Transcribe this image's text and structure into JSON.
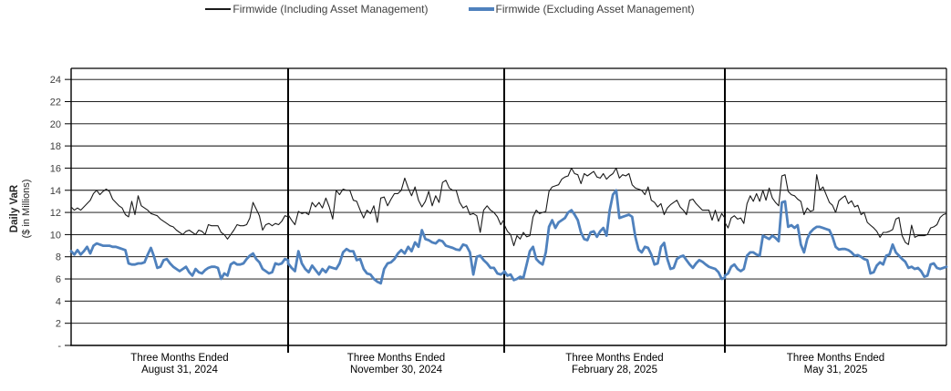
{
  "legend": {
    "items": [
      {
        "label": "Firmwide (Including Asset Management)"
      },
      {
        "label": "Firmwide (Excluding Asset Management)"
      }
    ]
  },
  "y_axis": {
    "title": "Daily VaR",
    "subtitle": "($ in Millions)",
    "tick_values": [
      0,
      2,
      4,
      6,
      8,
      10,
      12,
      14,
      16,
      18,
      20,
      22,
      24
    ],
    "tick_labels": [
      "-",
      "2",
      "4",
      "6",
      "8",
      "10",
      "12",
      "14",
      "16",
      "18",
      "20",
      "22",
      "24"
    ]
  },
  "chart_data": {
    "type": "line",
    "title": "",
    "xlabel": "",
    "ylabel_title": "Daily VaR",
    "ylabel_subtitle": "($ in Millions)",
    "ylim": [
      0,
      25
    ],
    "grid": true,
    "legend_position": "top",
    "series": [
      {
        "key": "including",
        "name": "Firmwide (Including Asset Management)",
        "color": "#1a1a1a",
        "stroke_width": 1.1,
        "legend_swatch_height": 1.5
      },
      {
        "key": "excluding",
        "name": "Firmwide (Excluding Asset Management)",
        "color": "#4f81bd",
        "stroke_width": 2.8,
        "legend_swatch_height": 3.5
      }
    ],
    "sections": [
      {
        "label": [
          "Three Months Ended",
          "August 31, 2024"
        ],
        "including": [
          12.5,
          12.2,
          12.4,
          12.2,
          12.5,
          12.8,
          13.1,
          13.7,
          14.0,
          13.6,
          13.9,
          14.1,
          13.9,
          13.2,
          12.9,
          12.6,
          12.4,
          11.8,
          11.6,
          13.0,
          11.8,
          13.5,
          12.6,
          12.4,
          12.2,
          11.9,
          11.8,
          11.7,
          11.4,
          11.2,
          11.0,
          10.8,
          10.7,
          10.4,
          10.2,
          10.0,
          10.3,
          10.4,
          10.2,
          10.0,
          10.4,
          10.3,
          10.0,
          10.9,
          10.8,
          10.8,
          10.8,
          10.2,
          10.0,
          9.6,
          10.0,
          10.4,
          10.9,
          10.8,
          10.8,
          10.9,
          11.5,
          12.9,
          12.3,
          11.7,
          10.4,
          10.9,
          11.0,
          10.8,
          11.0,
          10.9,
          11.2,
          11.7,
          11.6
        ],
        "excluding": [
          8.5,
          8.2,
          8.6,
          8.2,
          8.5,
          8.9,
          8.3,
          9.0,
          9.2,
          9.1,
          9.0,
          9.0,
          9.0,
          8.9,
          8.9,
          8.8,
          8.7,
          8.6,
          7.4,
          7.3,
          7.3,
          7.4,
          7.4,
          7.5,
          8.2,
          8.8,
          8.0,
          7.0,
          7.1,
          7.7,
          7.8,
          7.4,
          7.1,
          6.9,
          6.7,
          6.9,
          7.1,
          6.6,
          6.3,
          6.9,
          6.6,
          6.5,
          6.8,
          7.0,
          7.1,
          7.1,
          7.0,
          6.0,
          6.5,
          6.3,
          7.3,
          7.5,
          7.3,
          7.3,
          7.4,
          7.8,
          8.1,
          8.3,
          7.8,
          7.5,
          6.9,
          6.7,
          6.5,
          6.6,
          7.4,
          7.3,
          7.4,
          7.8,
          7.7
        ]
      },
      {
        "label": [
          "Three Months Ended",
          "November 30, 2024"
        ],
        "including": [
          11.8,
          11.3,
          10.9,
          12.1,
          11.9,
          12.0,
          11.8,
          12.9,
          12.5,
          12.9,
          12.4,
          13.3,
          12.5,
          11.4,
          14.0,
          13.6,
          14.1,
          14.0,
          14.0,
          13.1,
          13.0,
          12.2,
          11.5,
          12.2,
          11.9,
          12.6,
          11.1,
          13.3,
          13.4,
          12.6,
          13.2,
          13.7,
          13.7,
          14.0,
          15.1,
          14.2,
          13.5,
          14.3,
          13.1,
          12.5,
          13.0,
          13.9,
          12.6,
          13.5,
          12.9,
          14.7,
          14.9,
          14.2,
          14.0,
          14.0,
          12.9,
          12.4,
          12.6,
          11.8,
          11.9,
          11.7,
          10.2,
          12.2,
          12.6,
          12.2,
          12.0,
          11.6,
          10.9,
          11.4
        ],
        "excluding": [
          7.4,
          7.0,
          6.7,
          8.5,
          7.4,
          6.9,
          6.6,
          7.2,
          6.8,
          6.4,
          6.9,
          6.6,
          7.1,
          7.0,
          6.9,
          7.4,
          8.4,
          8.7,
          8.5,
          8.5,
          7.7,
          7.8,
          6.9,
          6.5,
          6.4,
          6.0,
          5.75,
          5.6,
          6.9,
          7.4,
          7.5,
          7.8,
          8.3,
          8.6,
          8.3,
          8.9,
          8.5,
          9.3,
          8.9,
          10.4,
          9.6,
          9.5,
          9.3,
          9.2,
          9.5,
          9.4,
          9.0,
          8.9,
          8.8,
          8.65,
          8.6,
          9.1,
          9.0,
          8.4,
          6.4,
          8.0,
          8.1,
          7.7,
          7.4,
          7.0,
          7.0,
          6.5,
          6.4,
          6.6
        ]
      },
      {
        "label": [
          "Three Months Ended",
          "February 28, 2025"
        ],
        "including": [
          10.9,
          10.3,
          10.0,
          9.0,
          9.9,
          9.6,
          10.2,
          9.8,
          9.9,
          11.6,
          12.2,
          11.9,
          12.0,
          12.1,
          13.9,
          14.3,
          14.4,
          14.5,
          15.0,
          15.2,
          15.3,
          16.0,
          15.5,
          15.4,
          14.6,
          15.5,
          15.3,
          15.5,
          15.7,
          15.2,
          15.1,
          15.5,
          15.0,
          15.3,
          15.5,
          16.0,
          15.1,
          15.4,
          15.3,
          15.5,
          14.5,
          14.2,
          14.1,
          14.0,
          13.6,
          14.3,
          13.1,
          12.9,
          12.5,
          12.8,
          11.8,
          12.4,
          12.7,
          12.9,
          13.1,
          12.5,
          12.2,
          11.8,
          13.1,
          13.2,
          12.8,
          12.5,
          12.2,
          12.2,
          12.2,
          11.3,
          12.2,
          11.2,
          11.9,
          11.5
        ],
        "excluding": [
          6.7,
          6.3,
          6.4,
          5.9,
          6.0,
          6.2,
          6.1,
          7.3,
          8.5,
          8.9,
          7.8,
          7.5,
          7.3,
          8.4,
          10.7,
          11.3,
          10.6,
          11.1,
          11.3,
          11.5,
          12.0,
          12.2,
          11.8,
          11.3,
          10.2,
          9.6,
          9.5,
          10.2,
          10.3,
          9.8,
          10.3,
          10.6,
          9.9,
          12.2,
          13.6,
          14.0,
          11.5,
          11.6,
          11.7,
          11.8,
          11.6,
          9.8,
          8.65,
          8.4,
          8.9,
          8.8,
          8.2,
          7.3,
          7.4,
          8.9,
          9.25,
          7.8,
          6.9,
          7.0,
          7.8,
          8.0,
          8.1,
          7.7,
          7.3,
          7.0,
          7.4,
          7.7,
          7.55,
          7.3,
          7.1,
          7.0,
          6.9,
          6.6,
          6.0,
          6.1
        ]
      },
      {
        "label": [
          "Three Months Ended",
          "May 31, 2025"
        ],
        "including": [
          11.1,
          10.6,
          11.5,
          11.7,
          11.4,
          11.5,
          11.0,
          12.8,
          13.5,
          13.0,
          13.7,
          13.0,
          14.0,
          13.1,
          14.2,
          13.3,
          12.9,
          12.6,
          15.3,
          15.4,
          13.9,
          13.6,
          13.5,
          13.2,
          13.0,
          11.8,
          12.4,
          12.1,
          12.2,
          15.4,
          14.0,
          14.3,
          13.6,
          12.9,
          12.65,
          12.0,
          13.05,
          13.3,
          13.5,
          12.8,
          13.05,
          12.5,
          12.65,
          11.8,
          12.0,
          11.1,
          10.85,
          10.6,
          10.3,
          9.75,
          10.2,
          10.2,
          10.3,
          10.45,
          11.4,
          11.55,
          9.9,
          9.3,
          9.1,
          10.85,
          9.75,
          9.9,
          9.9,
          9.9,
          10.0,
          10.6,
          10.7,
          10.9,
          11.55,
          11.8,
          11.9
        ],
        "excluding": [
          6.3,
          6.5,
          7.1,
          7.3,
          6.9,
          6.7,
          6.9,
          8.1,
          8.4,
          8.4,
          8.2,
          8.1,
          9.9,
          9.75,
          9.6,
          9.9,
          9.7,
          9.4,
          12.9,
          13.0,
          10.7,
          10.85,
          10.6,
          10.85,
          9.1,
          8.4,
          9.6,
          10.2,
          10.5,
          10.7,
          10.7,
          10.6,
          10.5,
          10.4,
          9.8,
          8.9,
          8.65,
          8.7,
          8.7,
          8.6,
          8.4,
          8.1,
          8.15,
          8.0,
          7.8,
          7.7,
          6.5,
          6.6,
          7.2,
          7.5,
          7.3,
          8.1,
          8.2,
          9.1,
          8.4,
          8.1,
          7.8,
          7.55,
          7.0,
          7.1,
          6.9,
          7.0,
          6.7,
          6.2,
          6.3,
          7.3,
          7.4,
          7.0,
          6.9,
          7.0,
          7.1
        ]
      }
    ]
  }
}
